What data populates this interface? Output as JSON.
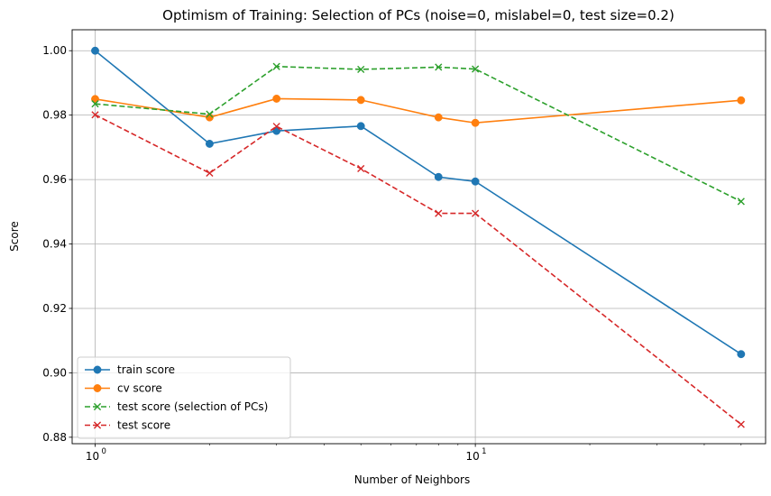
{
  "chart_data": {
    "type": "line",
    "title": "Optimism of Training: Selection of PCs (noise=0, mislabel=0, test size=0.2)",
    "xlabel": "Number of Neighbors",
    "ylabel": "Score",
    "xscale": "log",
    "xlim": [
      0.87,
      58
    ],
    "ylim": [
      0.878,
      1.0065
    ],
    "x_major_ticks": [
      1,
      10
    ],
    "x_major_tick_labels": [
      "10",
      "10"
    ],
    "x_major_tick_exponents": [
      "0",
      "1"
    ],
    "x_minor_ticks": [
      2,
      3,
      4,
      5,
      6,
      7,
      8,
      9,
      20,
      30,
      40,
      50
    ],
    "y_ticks": [
      0.88,
      0.9,
      0.92,
      0.94,
      0.96,
      0.98,
      1.0
    ],
    "y_tick_labels": [
      "0.88",
      "0.90",
      "0.92",
      "0.94",
      "0.96",
      "0.98",
      "1.00"
    ],
    "grid": true,
    "legend_position": "lower-left",
    "series": [
      {
        "name": "train score",
        "color": "#1f77b4",
        "linestyle": "solid",
        "marker": "circle",
        "x": [
          1,
          2,
          3,
          5,
          8,
          10,
          50
        ],
        "y": [
          1.0,
          0.9711,
          0.9751,
          0.9766,
          0.9608,
          0.9594,
          0.9058
        ]
      },
      {
        "name": "cv score",
        "color": "#ff7f0e",
        "linestyle": "solid",
        "marker": "circle",
        "x": [
          1,
          2,
          3,
          5,
          8,
          10,
          50
        ],
        "y": [
          0.985,
          0.9793,
          0.9851,
          0.9847,
          0.9793,
          0.9776,
          0.9846
        ]
      },
      {
        "name": "test score (selection of PCs)",
        "color": "#2ca02c",
        "linestyle": "dashed",
        "marker": "x",
        "x": [
          1,
          2,
          3,
          5,
          8,
          10,
          50
        ],
        "y": [
          0.9835,
          0.9803,
          0.9951,
          0.9942,
          0.9949,
          0.9943,
          0.9532
        ]
      },
      {
        "name": "test score",
        "color": "#d62728",
        "linestyle": "dashed",
        "marker": "x",
        "x": [
          1,
          2,
          3,
          5,
          8,
          10,
          50
        ],
        "y": [
          0.9801,
          0.962,
          0.9765,
          0.9634,
          0.9495,
          0.9495,
          0.884
        ]
      }
    ]
  }
}
